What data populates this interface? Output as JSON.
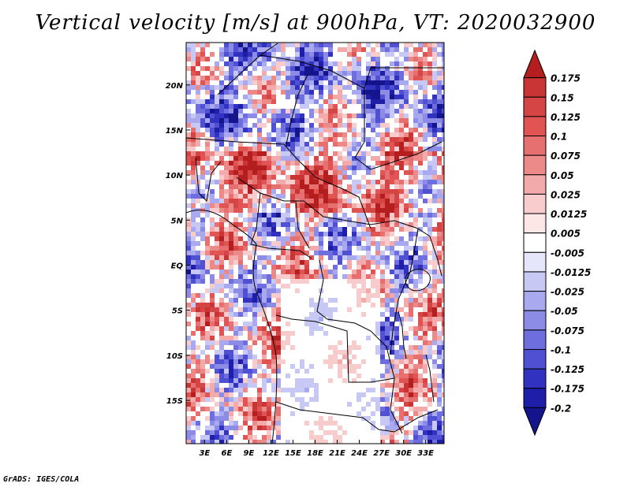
{
  "title": "Vertical velocity [m/s] at 900hPa, VT: 2020032900",
  "footer": "GrADS: IGES/COLA",
  "chart_data": {
    "type": "heatmap",
    "title": "Vertical velocity [m/s] at 900hPa, VT: 2020032900",
    "variable": "Vertical velocity",
    "units": "m/s",
    "level": "900hPa",
    "valid_time": "2020032900",
    "x_ticks": [
      "3E",
      "6E",
      "9E",
      "12E",
      "15E",
      "18E",
      "21E",
      "24E",
      "27E",
      "30E",
      "33E"
    ],
    "x_tick_values": [
      3,
      6,
      9,
      12,
      15,
      18,
      21,
      24,
      27,
      30,
      33
    ],
    "y_ticks": [
      "20N",
      "15N",
      "10N",
      "5N",
      "EQ",
      "5S",
      "10S",
      "15S"
    ],
    "y_tick_values": [
      20,
      15,
      10,
      5,
      0,
      -5,
      -10,
      -15
    ],
    "xlim": [
      0.5,
      35.5
    ],
    "ylim": [
      -19.8,
      24.7
    ],
    "colorbar": {
      "labels": [
        "0.175",
        "0.15",
        "0.125",
        "0.1",
        "0.075",
        "0.05",
        "0.025",
        "0.0125",
        "0.005",
        "-0.005",
        "-0.0125",
        "-0.025",
        "-0.05",
        "-0.075",
        "-0.1",
        "-0.125",
        "-0.175",
        "-0.2"
      ],
      "colors": [
        "#b41e1e",
        "#c93434",
        "#d64545",
        "#e05454",
        "#e67070",
        "#ec8a8a",
        "#f3aaaa",
        "#f8cccc",
        "#fce6e6",
        "#ffffff",
        "#e6e6fb",
        "#c8c8f5",
        "#a9a9ef",
        "#8c8ce6",
        "#6e6ede",
        "#5050d2",
        "#3232c0",
        "#1e1ea8",
        "#14148c"
      ]
    },
    "grid": false
  }
}
